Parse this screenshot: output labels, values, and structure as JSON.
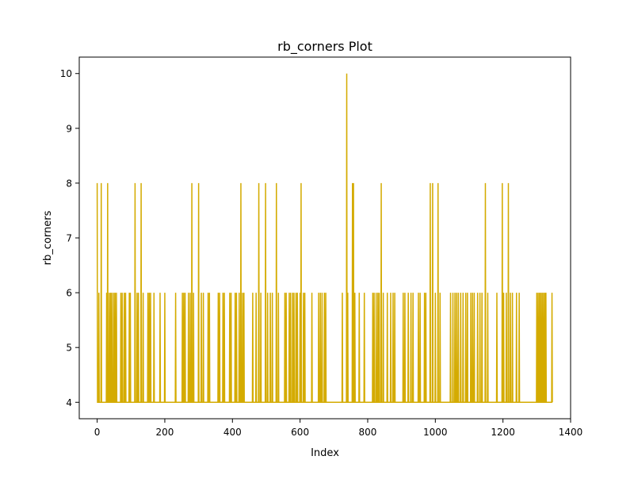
{
  "chart_data": {
    "type": "line",
    "title": "rb_corners Plot",
    "xlabel": "Index",
    "ylabel": "rb_corners",
    "xlim": [
      -53,
      1400
    ],
    "ylim": [
      3.7,
      10.3
    ],
    "x_ticks": [
      0,
      200,
      400,
      600,
      800,
      1000,
      1200,
      1400
    ],
    "y_ticks": [
      4,
      5,
      6,
      7,
      8,
      9,
      10
    ],
    "grid": false,
    "legend": "none",
    "line_color": "#d4ab00",
    "n_points": 1347,
    "baseline": 4,
    "spikes": [
      [
        0,
        8
      ],
      [
        5,
        6
      ],
      [
        12,
        8
      ],
      [
        28,
        6
      ],
      [
        31,
        8
      ],
      [
        36,
        6
      ],
      [
        40,
        6
      ],
      [
        44,
        6
      ],
      [
        49,
        6
      ],
      [
        53,
        6
      ],
      [
        57,
        6
      ],
      [
        70,
        6
      ],
      [
        74,
        6
      ],
      [
        80,
        6
      ],
      [
        84,
        6
      ],
      [
        95,
        6
      ],
      [
        98,
        6
      ],
      [
        112,
        8
      ],
      [
        118,
        6
      ],
      [
        122,
        6
      ],
      [
        130,
        8
      ],
      [
        136,
        6
      ],
      [
        150,
        6
      ],
      [
        154,
        6
      ],
      [
        158,
        6
      ],
      [
        168,
        6
      ],
      [
        186,
        6
      ],
      [
        200,
        6
      ],
      [
        232,
        6
      ],
      [
        252,
        6
      ],
      [
        256,
        6
      ],
      [
        260,
        6
      ],
      [
        270,
        6
      ],
      [
        275,
        6
      ],
      [
        280,
        8
      ],
      [
        285,
        6
      ],
      [
        300,
        8
      ],
      [
        308,
        6
      ],
      [
        314,
        6
      ],
      [
        328,
        6
      ],
      [
        332,
        6
      ],
      [
        358,
        6
      ],
      [
        362,
        6
      ],
      [
        372,
        6
      ],
      [
        376,
        6
      ],
      [
        392,
        6
      ],
      [
        396,
        6
      ],
      [
        408,
        6
      ],
      [
        412,
        6
      ],
      [
        420,
        6
      ],
      [
        425,
        8
      ],
      [
        430,
        6
      ],
      [
        434,
        6
      ],
      [
        460,
        6
      ],
      [
        470,
        6
      ],
      [
        478,
        8
      ],
      [
        484,
        6
      ],
      [
        498,
        8
      ],
      [
        504,
        6
      ],
      [
        512,
        6
      ],
      [
        518,
        6
      ],
      [
        530,
        8
      ],
      [
        536,
        6
      ],
      [
        555,
        6
      ],
      [
        559,
        6
      ],
      [
        568,
        6
      ],
      [
        572,
        6
      ],
      [
        578,
        6
      ],
      [
        582,
        6
      ],
      [
        588,
        6
      ],
      [
        592,
        6
      ],
      [
        600,
        6
      ],
      [
        603,
        8
      ],
      [
        610,
        6
      ],
      [
        614,
        6
      ],
      [
        635,
        6
      ],
      [
        655,
        6
      ],
      [
        660,
        6
      ],
      [
        665,
        6
      ],
      [
        672,
        6
      ],
      [
        676,
        6
      ],
      [
        725,
        6
      ],
      [
        738,
        10
      ],
      [
        741,
        6
      ],
      [
        755,
        8
      ],
      [
        758,
        8
      ],
      [
        762,
        6
      ],
      [
        775,
        6
      ],
      [
        790,
        6
      ],
      [
        815,
        6
      ],
      [
        819,
        6
      ],
      [
        825,
        6
      ],
      [
        830,
        6
      ],
      [
        834,
        6
      ],
      [
        840,
        8
      ],
      [
        846,
        6
      ],
      [
        858,
        6
      ],
      [
        868,
        6
      ],
      [
        875,
        6
      ],
      [
        880,
        6
      ],
      [
        905,
        6
      ],
      [
        910,
        6
      ],
      [
        920,
        6
      ],
      [
        928,
        6
      ],
      [
        934,
        6
      ],
      [
        950,
        6
      ],
      [
        955,
        6
      ],
      [
        968,
        6
      ],
      [
        972,
        6
      ],
      [
        985,
        8
      ],
      [
        992,
        8
      ],
      [
        1000,
        6
      ],
      [
        1008,
        8
      ],
      [
        1014,
        6
      ],
      [
        1045,
        6
      ],
      [
        1052,
        6
      ],
      [
        1058,
        6
      ],
      [
        1063,
        6
      ],
      [
        1068,
        6
      ],
      [
        1075,
        6
      ],
      [
        1082,
        6
      ],
      [
        1090,
        6
      ],
      [
        1095,
        6
      ],
      [
        1105,
        6
      ],
      [
        1110,
        6
      ],
      [
        1115,
        6
      ],
      [
        1125,
        6
      ],
      [
        1132,
        6
      ],
      [
        1138,
        6
      ],
      [
        1148,
        8
      ],
      [
        1155,
        6
      ],
      [
        1182,
        6
      ],
      [
        1198,
        8
      ],
      [
        1202,
        6
      ],
      [
        1210,
        6
      ],
      [
        1216,
        8
      ],
      [
        1222,
        6
      ],
      [
        1228,
        6
      ],
      [
        1240,
        6
      ],
      [
        1248,
        6
      ],
      [
        1300,
        6
      ],
      [
        1304,
        6
      ],
      [
        1308,
        6
      ],
      [
        1312,
        6
      ],
      [
        1316,
        6
      ],
      [
        1320,
        6
      ],
      [
        1324,
        6
      ],
      [
        1327,
        6
      ],
      [
        1345,
        6
      ]
    ]
  }
}
